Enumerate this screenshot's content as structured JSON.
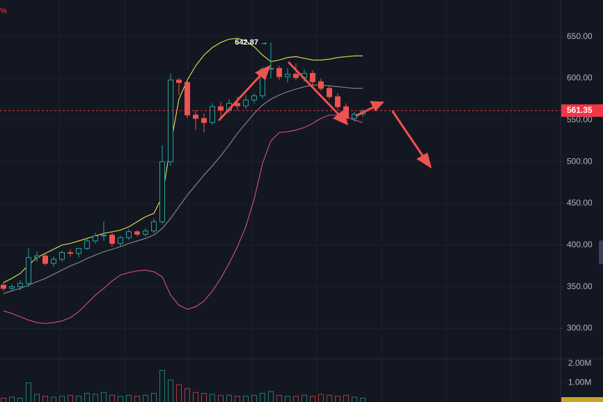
{
  "chart_data": {
    "type": "candlestick",
    "corner_text": "%",
    "up_color": "#26a69a",
    "down_color": "#ef5350",
    "open": [
      352,
      348,
      350,
      354,
      385,
      387,
      378,
      383,
      391,
      390,
      396,
      405,
      411,
      412,
      402,
      409,
      416,
      413,
      417,
      428,
      500,
      598,
      595,
      556,
      552,
      547,
      566,
      562,
      570,
      567,
      574,
      579,
      611,
      612,
      602,
      605,
      601,
      606,
      596,
      588,
      578,
      566,
      552,
      557
    ],
    "high": [
      355,
      353,
      358,
      396,
      392,
      390,
      386,
      393,
      395,
      394,
      408,
      415,
      428,
      415,
      411,
      419,
      418,
      420,
      432,
      520,
      606,
      600,
      598,
      562,
      558,
      570,
      572,
      575,
      578,
      580,
      582,
      614,
      642.87,
      615,
      612,
      618,
      611,
      610,
      600,
      592,
      582,
      570,
      560,
      563
    ],
    "low": [
      345,
      345,
      346,
      350,
      380,
      375,
      374,
      380,
      386,
      385,
      394,
      402,
      405,
      398,
      399,
      406,
      410,
      410,
      414,
      425,
      495,
      580,
      552,
      538,
      535,
      544,
      554,
      558,
      562,
      563,
      570,
      576,
      600,
      598,
      595,
      598,
      596,
      590,
      585,
      575,
      562,
      548,
      548,
      554
    ],
    "close": [
      348,
      350,
      354,
      385,
      387,
      378,
      383,
      391,
      390,
      396,
      405,
      411,
      412,
      402,
      409,
      416,
      413,
      417,
      428,
      500,
      598,
      595,
      556,
      552,
      547,
      566,
      562,
      570,
      567,
      574,
      579,
      611,
      612,
      602,
      605,
      601,
      606,
      596,
      588,
      578,
      566,
      552,
      557,
      561
    ],
    "volume": [
      200000,
      250000,
      200000,
      1000000,
      400000,
      300000,
      250000,
      300000,
      350000,
      300000,
      450000,
      400000,
      500000,
      350000,
      300000,
      350000,
      300000,
      350000,
      450000,
      1650000,
      1150000,
      900000,
      700000,
      500000,
      450000,
      400000,
      350000,
      350000,
      300000,
      300000,
      350000,
      450000,
      550000,
      350000,
      300000,
      300000,
      350000,
      300000,
      400000,
      350000,
      300000,
      350000,
      250000,
      200000
    ],
    "bands": {
      "upper": {
        "color": "#e8e84a",
        "values": [
          355,
          360,
          366,
          376,
          385,
          390,
          395,
          400,
          402,
          405,
          408,
          411,
          414,
          416,
          418,
          422,
          428,
          434,
          438,
          458,
          520,
          575,
          598,
          615,
          628,
          637,
          643,
          647,
          648,
          645,
          638,
          628,
          620,
          622,
          625,
          626,
          624,
          622,
          622,
          623,
          625,
          626,
          627,
          627
        ]
      },
      "middle": {
        "color": "#8a8d96",
        "values": [
          342,
          345,
          348,
          352,
          356,
          360,
          365,
          370,
          375,
          379,
          384,
          388,
          392,
          395,
          398,
          402,
          405,
          408,
          412,
          420,
          432,
          446,
          460,
          472,
          484,
          495,
          507,
          520,
          534,
          546,
          558,
          568,
          575,
          580,
          584,
          587,
          590,
          592,
          592,
          591,
          590,
          589,
          588,
          588
        ]
      },
      "lower": {
        "color": "#e0479e",
        "values": [
          321,
          318,
          314,
          310,
          307,
          306,
          307,
          309,
          313,
          320,
          330,
          340,
          348,
          357,
          364,
          367,
          369,
          370,
          368,
          362,
          340,
          328,
          323,
          326,
          333,
          345,
          360,
          378,
          398,
          422,
          455,
          498,
          525,
          535,
          536,
          538,
          541,
          546,
          552,
          556,
          556,
          554,
          550,
          547
        ]
      }
    },
    "high_marker": {
      "value": 642.87,
      "label": "642.87 →"
    },
    "last_price": 561.35,
    "last_price_color": "#f23645",
    "ylim": [
      263.58,
      694
    ],
    "yticks": [
      {
        "value": 650,
        "label": "650.00"
      },
      {
        "value": 600,
        "label": "600.00"
      },
      {
        "value": 550,
        "label": "550.00"
      },
      {
        "value": 500,
        "label": "500.00"
      },
      {
        "value": 450,
        "label": "450.00"
      },
      {
        "value": 400,
        "label": "400.00"
      },
      {
        "value": 350,
        "label": "350.00"
      },
      {
        "value": 300,
        "label": "300.00"
      }
    ],
    "volume_ylim": [
      0,
      2250000
    ],
    "volume_ticks": [
      {
        "value": 2000000,
        "label": "2.00M"
      },
      {
        "value": 1000000,
        "label": "1.00M"
      }
    ],
    "grid": true
  }
}
